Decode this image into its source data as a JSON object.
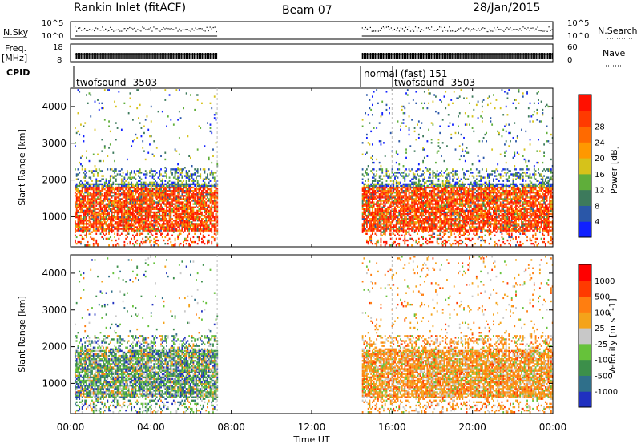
{
  "header": {
    "station": "Rankin Inlet (fitACF)",
    "beam": "Beam 07",
    "date": "28/Jan/2015"
  },
  "panels": {
    "nsky_label": "N.Sky",
    "nsearch_label": "N.Search",
    "freq_label_1": "Freq.",
    "freq_label_2": "[MHz]",
    "nave_label": "Nave",
    "cpid_label": "CPID",
    "nsky_ticks": [
      "10^5",
      "10^0"
    ],
    "nsearch_ticks": [
      "10^5",
      "10^0"
    ],
    "freq_ticks": [
      "18",
      "8"
    ],
    "nave_ticks": [
      "60",
      "0"
    ],
    "cpid_segments": [
      {
        "label": "twofsound -3503",
        "start_hour": 0
      },
      {
        "label": "normal (fast) 151",
        "start_hour": 14.5
      },
      {
        "label": "twofsound -3503",
        "start_hour": 16
      }
    ]
  },
  "legend_colors": {
    "power": [
      "#1020ff",
      "#2a57a8",
      "#3d7a5c",
      "#5fae3a",
      "#d6c21a",
      "#ff9800",
      "#ff6a00",
      "#ff3a00",
      "#ff1000"
    ],
    "velocity": [
      "#2030c0",
      "#2f6f8a",
      "#3c8f4a",
      "#66c23a",
      "#c8c8c8",
      "#f4a31a",
      "#ff7e10",
      "#ff3a00",
      "#ff0000"
    ]
  },
  "chart_data": [
    {
      "type": "heatmap",
      "title": "",
      "xlabel": "Time UT",
      "ylabel": "Slant Range [km]",
      "colorbar_label": "Power [dB]",
      "x_ticks": [
        "00:00",
        "04:00",
        "08:00",
        "12:00",
        "16:00",
        "20:00",
        "00:00"
      ],
      "xlim_hours": [
        0,
        24
      ],
      "y_ticks": [
        1000,
        2000,
        3000,
        4000
      ],
      "ylim": [
        180,
        4500
      ],
      "colorbar_ticks": [
        "4",
        "8",
        "12",
        "16",
        "20",
        "24",
        "28"
      ],
      "scatter_regions": [
        {
          "t": [
            0.2,
            7.3
          ],
          "r": [
            600,
            1800
          ],
          "dominant": "red-orange"
        },
        {
          "t": [
            14.5,
            24
          ],
          "r": [
            600,
            2000
          ],
          "dominant": "red-orange"
        },
        {
          "t": [
            14.5,
            24
          ],
          "r": [
            2000,
            4500
          ],
          "dominant": "sparse mixed"
        }
      ]
    },
    {
      "type": "heatmap",
      "title": "",
      "xlabel": "Time UT",
      "ylabel": "Slant Range [km]",
      "colorbar_label": "Velocity [m s^-1]",
      "x_ticks": [
        "00:00",
        "04:00",
        "08:00",
        "12:00",
        "16:00",
        "20:00",
        "00:00"
      ],
      "xlim_hours": [
        0,
        24
      ],
      "y_ticks": [
        1000,
        2000,
        3000,
        4000
      ],
      "ylim": [
        180,
        4500
      ],
      "colorbar_ticks": [
        "1000",
        "500",
        "100",
        "25",
        "-25",
        "-100",
        "-500",
        "-1000"
      ],
      "scatter_regions": [
        {
          "t": [
            0.2,
            7.3
          ],
          "r": [
            600,
            2200
          ],
          "dominant": "green-blue"
        },
        {
          "t": [
            14.5,
            24
          ],
          "r": [
            600,
            2200
          ],
          "dominant": "orange"
        },
        {
          "t": [
            14.5,
            24
          ],
          "r": [
            2200,
            4500
          ],
          "dominant": "sparse orange"
        }
      ]
    }
  ]
}
